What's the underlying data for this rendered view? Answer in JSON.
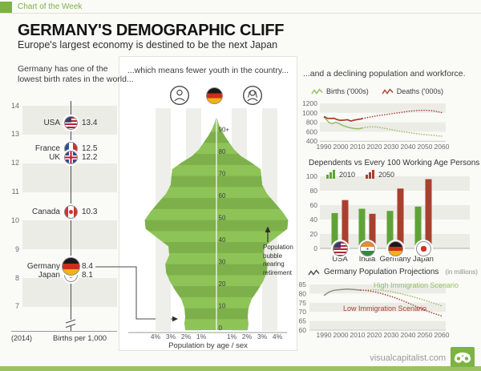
{
  "header": {
    "kicker": "Chart of the Week",
    "title": "GERMANY'S DEMOGRAPHIC CLIFF",
    "subtitle": "Europe's largest economy is destined to be the next Japan"
  },
  "panel_headings": {
    "birth_rate_line1": "Germany has one of the",
    "birth_rate_line2": "lowest birth rates in the world...",
    "pyramid": "...which means fewer youth in the country...",
    "decline": "...and a declining population and workforce."
  },
  "footer": {
    "site": "visualcapitalist.com"
  },
  "icons": [
    "male-icon",
    "female-icon",
    "zigzag-line-icon",
    "mini-bars-icon",
    "visual-capitalist-logo"
  ],
  "accent_colors": {
    "brand_green": "#7cb342",
    "pyramid_light_green": "#8ec457",
    "pyramid_dark_green": "#7db04a",
    "series_green": "#93bf61",
    "series_red": "#a8402f",
    "bar_green": "#5fa336",
    "band_gray": "#ecece7"
  },
  "chart_data": [
    {
      "id": "birth-rates",
      "type": "scatter",
      "title": "Germany has one of the lowest birth rates in the world...",
      "note_year": "(2014)",
      "axis_label": "Births per 1,000",
      "ylim": [
        7,
        14
      ],
      "yticks": [
        14,
        13,
        12,
        11,
        10,
        9,
        8,
        7
      ],
      "points": [
        {
          "country": "USA",
          "flag": "usa",
          "value": 13.4
        },
        {
          "country": "France",
          "flag": "france",
          "value": 12.5
        },
        {
          "country": "UK",
          "flag": "uk",
          "value": 12.2
        },
        {
          "country": "Canada",
          "flag": "canada",
          "value": 10.3
        },
        {
          "country": "Germany",
          "flag": "germany",
          "value": 8.4,
          "highlight": true
        },
        {
          "country": "Japan",
          "flag": "japan",
          "value": 8.1
        }
      ]
    },
    {
      "id": "population-pyramid",
      "type": "area",
      "title": "...which means fewer youth in the country...",
      "xlabel": "Population by age / sex",
      "annotation": "Population bubble nearing retirement",
      "age_ticks": [
        "0",
        "10",
        "20",
        "30",
        "40",
        "50",
        "60",
        "70",
        "80",
        "90+"
      ],
      "pct_ticks_left": [
        "4%",
        "3%",
        "2%",
        "1%"
      ],
      "pct_ticks_right": [
        "1%",
        "2%",
        "3%",
        "4%"
      ],
      "profile_age_pct": [
        [
          0,
          2.05
        ],
        [
          3,
          2.1
        ],
        [
          6,
          2.05
        ],
        [
          10,
          2.1
        ],
        [
          14,
          2.3
        ],
        [
          18,
          2.7
        ],
        [
          22,
          3.05
        ],
        [
          26,
          3.3
        ],
        [
          30,
          3.35
        ],
        [
          34,
          3.1
        ],
        [
          38,
          3.15
        ],
        [
          42,
          3.9
        ],
        [
          46,
          4.65
        ],
        [
          50,
          4.7
        ],
        [
          54,
          4.3
        ],
        [
          58,
          3.8
        ],
        [
          62,
          3.3
        ],
        [
          66,
          3.0
        ],
        [
          70,
          2.95
        ],
        [
          73,
          2.9
        ],
        [
          76,
          2.3
        ],
        [
          79,
          1.6
        ],
        [
          82,
          1.15
        ],
        [
          85,
          0.85
        ],
        [
          88,
          0.55
        ],
        [
          91,
          0.3
        ],
        [
          94,
          0.12
        ],
        [
          97,
          0
        ]
      ]
    },
    {
      "id": "births-deaths",
      "type": "line",
      "ylim": [
        400,
        1200
      ],
      "yticks": [
        1200,
        1000,
        800,
        600,
        400
      ],
      "xticks": [
        1990,
        2000,
        2010,
        2020,
        2030,
        2040,
        2050,
        2060
      ],
      "series": [
        {
          "name": "Births ('000s)",
          "color": "#93bf61",
          "solid": [
            [
              1990,
              900
            ],
            [
              1991,
              880
            ],
            [
              1993,
              795
            ],
            [
              1995,
              770
            ],
            [
              1997,
              800
            ],
            [
              1999,
              775
            ],
            [
              2001,
              735
            ],
            [
              2003,
              710
            ],
            [
              2005,
              690
            ],
            [
              2007,
              675
            ],
            [
              2009,
              665
            ],
            [
              2011,
              665
            ],
            [
              2013,
              680
            ]
          ],
          "projected": [
            [
              2015,
              695
            ],
            [
              2018,
              705
            ],
            [
              2021,
              700
            ],
            [
              2024,
              685
            ],
            [
              2027,
              665
            ],
            [
              2030,
              645
            ],
            [
              2033,
              625
            ],
            [
              2036,
              605
            ],
            [
              2039,
              590
            ],
            [
              2042,
              575
            ],
            [
              2045,
              560
            ],
            [
              2048,
              548
            ],
            [
              2051,
              535
            ],
            [
              2054,
              525
            ],
            [
              2057,
              515
            ],
            [
              2060,
              505
            ]
          ]
        },
        {
          "name": "Deaths ('000s)",
          "color": "#a8402f",
          "solid": [
            [
              1990,
              920
            ],
            [
              1991,
              905
            ],
            [
              1992,
              885
            ],
            [
              1994,
              880
            ],
            [
              1996,
              885
            ],
            [
              1998,
              855
            ],
            [
              2000,
              840
            ],
            [
              2002,
              845
            ],
            [
              2004,
              855
            ],
            [
              2006,
              825
            ],
            [
              2008,
              845
            ],
            [
              2010,
              860
            ],
            [
              2012,
              870
            ],
            [
              2013,
              880
            ]
          ],
          "projected": [
            [
              2016,
              900
            ],
            [
              2019,
              920
            ],
            [
              2022,
              940
            ],
            [
              2025,
              955
            ],
            [
              2028,
              970
            ],
            [
              2031,
              985
            ],
            [
              2034,
              1000
            ],
            [
              2037,
              1015
            ],
            [
              2040,
              1030
            ],
            [
              2043,
              1040
            ],
            [
              2046,
              1050
            ],
            [
              2049,
              1055
            ],
            [
              2052,
              1050
            ],
            [
              2055,
              1040
            ],
            [
              2058,
              1020
            ],
            [
              2060,
              1005
            ]
          ]
        }
      ]
    },
    {
      "id": "dependency-ratio",
      "type": "bar",
      "title": "Dependents vs Every 100 Working Age Persons",
      "ylim": [
        0,
        100
      ],
      "yticks": [
        100,
        80,
        60,
        40,
        20,
        0
      ],
      "categories": [
        "USA",
        "India",
        "Germany",
        "Japan"
      ],
      "flags": [
        "usa",
        "india",
        "germany",
        "japan"
      ],
      "series": [
        {
          "name": "2010",
          "color": "#5fa336",
          "values": [
            49,
            55,
            52,
            58
          ]
        },
        {
          "name": "2050",
          "color": "#a8402f",
          "values": [
            67,
            48,
            83,
            96
          ]
        }
      ]
    },
    {
      "id": "population-projections",
      "type": "line",
      "title": "Germany Population Projections",
      "title_unit": "(in millions)",
      "ylim": [
        60,
        85
      ],
      "yticks": [
        85,
        80,
        75,
        70,
        65,
        60
      ],
      "xticks": [
        1990,
        2000,
        2010,
        2020,
        2030,
        2040,
        2050,
        2060
      ],
      "series": [
        {
          "name": "",
          "color": "#8b9184",
          "solid": [
            [
              1990,
              79
            ],
            [
              1993,
              80.8
            ],
            [
              1996,
              81.8
            ],
            [
              2000,
              82.2
            ],
            [
              2004,
              82.5
            ],
            [
              2008,
              82.2
            ],
            [
              2012,
              81.9
            ]
          ]
        },
        {
          "name": "High Immigration Scenario",
          "color": "#93bf61",
          "projected": [
            [
              2012,
              81.9
            ],
            [
              2016,
              82
            ],
            [
              2020,
              82.1
            ],
            [
              2024,
              81.9
            ],
            [
              2028,
              81.4
            ],
            [
              2032,
              80.7
            ],
            [
              2036,
              79.9
            ],
            [
              2040,
              79
            ],
            [
              2044,
              78
            ],
            [
              2048,
              76.9
            ],
            [
              2052,
              75.7
            ],
            [
              2056,
              74.5
            ],
            [
              2060,
              73.3
            ]
          ]
        },
        {
          "name": "Low Immigration Scenario",
          "color": "#a8402f",
          "projected": [
            [
              2012,
              81.9
            ],
            [
              2016,
              81.6
            ],
            [
              2020,
              81
            ],
            [
              2024,
              80.1
            ],
            [
              2028,
              79
            ],
            [
              2032,
              77.8
            ],
            [
              2036,
              76.4
            ],
            [
              2040,
              74.9
            ],
            [
              2044,
              73.3
            ],
            [
              2048,
              71.7
            ],
            [
              2052,
              70.2
            ],
            [
              2056,
              68.9
            ],
            [
              2060,
              67.8
            ]
          ]
        }
      ]
    }
  ]
}
